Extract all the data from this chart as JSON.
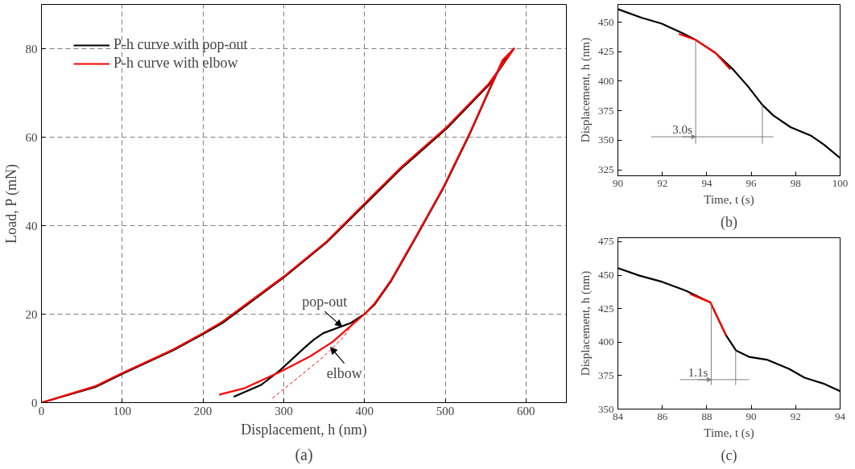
{
  "chart_data": [
    {
      "type": "line",
      "xlabel": "Displacement, h (nm)",
      "ylabel": "Load, P (mN)",
      "xlim": [
        0,
        650
      ],
      "ylim": [
        0,
        90
      ],
      "xticks": [
        0,
        100,
        200,
        300,
        400,
        500,
        600
      ],
      "yticks": [
        0,
        20,
        40,
        60,
        80
      ],
      "grid": true,
      "legend": "top left",
      "line_style": "solid",
      "series": [
        {
          "name": "P-h curve with pop-out",
          "color": "#000000",
          "x": [
            0,
            66.5,
            100,
            163,
            200,
            224,
            300,
            353,
            400,
            446,
            502,
            554,
            585,
            571,
            554,
            530,
            498,
            466,
            433,
            413,
            400,
            383,
            349,
            337,
            325,
            296,
            272,
            238
          ],
          "values": [
            0,
            3.5,
            6.5,
            11.8,
            15.5,
            18,
            28.3,
            36.2,
            44.7,
            53,
            62,
            71.8,
            80,
            77.2,
            70.4,
            60.6,
            48.6,
            38.1,
            27.5,
            22.3,
            20,
            18,
            15.7,
            14.2,
            12.3,
            7.4,
            4,
            1.3
          ]
        },
        {
          "name": "P-h curve with elbow",
          "color": "#ff0000",
          "x": [
            0,
            66.5,
            100,
            163,
            200,
            224,
            300,
            353,
            400,
            446,
            502,
            554,
            585,
            571,
            554,
            530,
            498,
            466,
            433,
            413,
            400,
            389,
            361,
            333,
            296,
            252,
            220
          ],
          "values": [
            0,
            3.7,
            6.7,
            12,
            15.7,
            18.3,
            28.5,
            36.4,
            45,
            53.3,
            62.3,
            72.1,
            80,
            77.4,
            70.6,
            60.8,
            48.8,
            38.3,
            27.7,
            22.5,
            20,
            18.3,
            13.8,
            10.5,
            7,
            3.3,
            1.8
          ]
        },
        {
          "color": "#ff0000",
          "line_style": "dashed",
          "x": [
            286,
            320,
            350,
            375,
            389
          ],
          "values": [
            1,
            6,
            10.5,
            15,
            19
          ]
        }
      ],
      "annotations": [
        {
          "text": "pop-out",
          "x": 372,
          "y": 17.2
        },
        {
          "text": "elbow",
          "x": 358,
          "y": 12.5
        },
        "(a)"
      ]
    },
    {
      "type": "line",
      "xlabel": "Time, t (s)",
      "ylabel": "Displacement, h (nm)",
      "xlim": [
        90,
        100
      ],
      "ylim": [
        320,
        465
      ],
      "xticks": [
        90,
        92,
        94,
        96,
        98,
        100
      ],
      "yticks": [
        325,
        350,
        375,
        400,
        425,
        450
      ],
      "series": [
        {
          "color": "#000000",
          "x": [
            90,
            91.06,
            91.96,
            92.87,
            93.5,
            94.4,
            95.13,
            95.84,
            96.5,
            97,
            97.78,
            98.7,
            99.3,
            100
          ],
          "values": [
            461,
            453.8,
            448.8,
            441,
            435,
            423.8,
            411,
            396,
            380,
            371,
            361,
            353.8,
            346,
            335
          ]
        },
        {
          "color": "#ff0000",
          "x": [
            92.74,
            93.5,
            93.9,
            94.4,
            95.06
          ],
          "values": [
            440,
            435,
            430,
            423.8,
            410
          ]
        },
        {
          "color": "#808080",
          "x": [
            93.5,
            93.5
          ],
          "values": [
            435,
            347
          ]
        },
        {
          "color": "#808080",
          "x": [
            96.5,
            96.5
          ],
          "values": [
            380,
            347
          ]
        },
        {
          "color": "#808080",
          "x": [
            91.5,
            97
          ],
          "values": [
            353,
            353
          ]
        }
      ],
      "annotations": [
        {
          "text": "3.0s",
          "x": 93.5,
          "y": 353
        },
        "(b)"
      ]
    },
    {
      "type": "line",
      "xlabel": "Time, t (s)",
      "ylabel": "Displacement, h (nm)",
      "xlim": [
        84,
        94
      ],
      "ylim": [
        350,
        478
      ],
      "xticks": [
        84,
        86,
        88,
        90,
        92,
        94
      ],
      "yticks": [
        350,
        375,
        400,
        425,
        450,
        475
      ],
      "series": [
        {
          "color": "#000000",
          "x": [
            84,
            84.97,
            86,
            87.05,
            88.16,
            88.87,
            89.32,
            89.9,
            90.7,
            91.7,
            92.4,
            93.27,
            94
          ],
          "values": [
            455.3,
            449.7,
            445,
            438.5,
            429.7,
            405,
            393.7,
            389,
            386.9,
            380,
            373.4,
            368.9,
            363.4
          ]
        },
        {
          "color": "#ff0000",
          "x": [
            87.25,
            88.16,
            88.87
          ],
          "values": [
            435.9,
            429.7,
            405
          ]
        },
        {
          "color": "#808080",
          "x": [
            88.2,
            88.2
          ],
          "values": [
            429,
            368
          ]
        },
        {
          "color": "#808080",
          "x": [
            89.3,
            89.3
          ],
          "values": [
            394,
            368
          ]
        },
        {
          "color": "#808080",
          "x": [
            86.8,
            89.9
          ],
          "values": [
            372,
            372
          ]
        }
      ],
      "annotations": [
        {
          "text": "1.1s",
          "x": 88.2,
          "y": 372
        },
        "(c)"
      ]
    }
  ]
}
